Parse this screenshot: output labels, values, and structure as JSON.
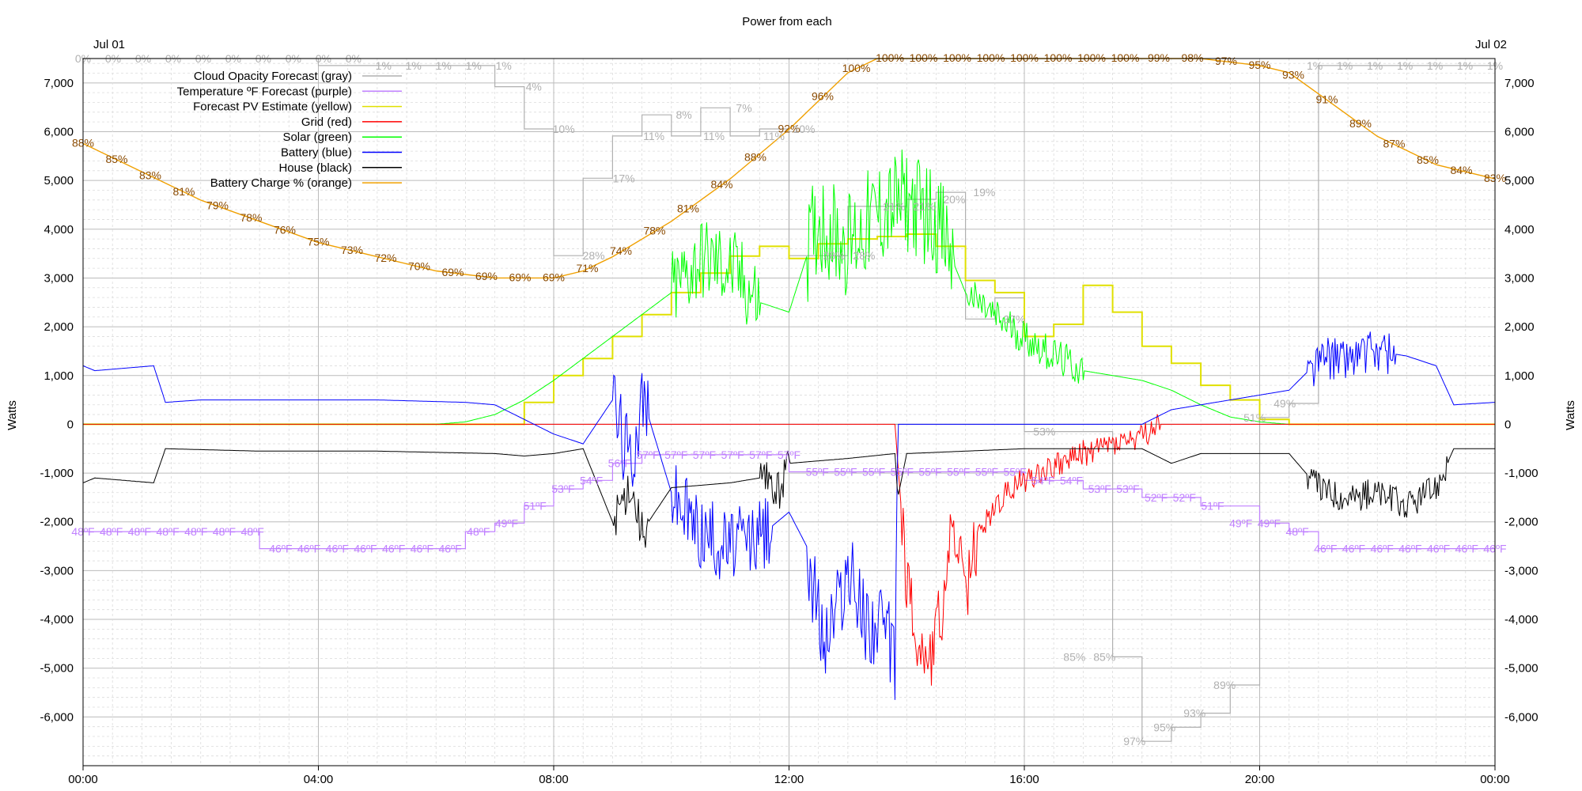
{
  "chart_data": {
    "type": "line",
    "title": "Power from each",
    "ylabel_left": "Watts",
    "ylabel_right": "Watts",
    "date_start_label": "Jul 01",
    "date_end_label": "Jul 02",
    "x_unit": "hour of day",
    "xlim": [
      0,
      24
    ],
    "ylim": [
      -7000,
      7500
    ],
    "x_tick_labels": [
      "00:00",
      "04:00",
      "08:00",
      "12:00",
      "16:00",
      "20:00",
      "00:00"
    ],
    "y_tick_labels": [
      "7,000",
      "6,000",
      "5,000",
      "4,000",
      "3,000",
      "2,000",
      "1,000",
      "0",
      "-1,000",
      "-2,000",
      "-3,000",
      "-4,000",
      "-5,000",
      "-6,000"
    ],
    "y_tick_values": [
      7000,
      6000,
      5000,
      4000,
      3000,
      2000,
      1000,
      0,
      -1000,
      -2000,
      -3000,
      -4000,
      -5000,
      -6000
    ],
    "grid": true,
    "legend_position": "top-left",
    "legend": [
      {
        "label": "Cloud Opacity Forecast (gray)",
        "color": "#b0b0b0"
      },
      {
        "label": "Temperature ºF Forecast (purple)",
        "color": "#c080ff"
      },
      {
        "label": "Forecast PV Estimate (yellow)",
        "color": "#e0e000"
      },
      {
        "label": "Grid (red)",
        "color": "#ff0000"
      },
      {
        "label": "Solar (green)",
        "color": "#00ff00"
      },
      {
        "label": "Battery (blue)",
        "color": "#0000ff"
      },
      {
        "label": "House (black)",
        "color": "#000000"
      },
      {
        "label": "Battery Charge % (orange)",
        "color": "#f0a000"
      }
    ],
    "series": [
      {
        "name": "Solar (green)",
        "color": "#00ff00",
        "x": [
          0,
          6,
          6.5,
          7,
          7.5,
          8,
          8.5,
          9,
          9.5,
          10,
          10.5,
          11,
          11.5,
          12,
          12.5,
          13,
          13.5,
          14,
          14.5,
          15,
          15.5,
          16,
          16.5,
          17,
          17.5,
          18,
          18.5,
          19,
          19.5,
          20,
          20.5
        ],
        "y": [
          0,
          0,
          50,
          200,
          500,
          900,
          1350,
          1800,
          2250,
          2700,
          3400,
          3200,
          2500,
          2300,
          4200,
          3700,
          4300,
          4600,
          4200,
          2700,
          2200,
          1800,
          1400,
          1100,
          1000,
          900,
          700,
          400,
          150,
          50,
          0
        ]
      },
      {
        "name": "Forecast PV Estimate (yellow)",
        "color": "#e0e000",
        "x": [
          0,
          7,
          7.5,
          8,
          8.5,
          9,
          9.5,
          10,
          10.5,
          11,
          11.5,
          12,
          12.5,
          13,
          13.5,
          14,
          14.5,
          15,
          15.5,
          16,
          16.5,
          17,
          17.5,
          18,
          18.5,
          19,
          19.5,
          20,
          20.5,
          21,
          24
        ],
        "y": [
          0,
          0,
          450,
          1000,
          1350,
          1800,
          2250,
          2700,
          3100,
          3450,
          3650,
          3400,
          3700,
          3800,
          3850,
          3900,
          3650,
          2950,
          2700,
          1800,
          2050,
          2850,
          2300,
          1600,
          1250,
          800,
          500,
          100,
          0,
          0,
          0
        ]
      },
      {
        "name": "Grid (red)",
        "color": "#ff0000",
        "x": [
          0,
          13.8,
          14,
          14.2,
          14.4,
          14.6,
          14.8,
          15,
          15.2,
          15.5,
          15.8,
          16.2,
          16.6,
          17,
          17.5,
          18,
          18.3,
          18.6,
          24
        ],
        "y": [
          0,
          0,
          -3200,
          -4500,
          -4800,
          -3800,
          -2000,
          -3600,
          -2300,
          -1700,
          -1300,
          -1000,
          -800,
          -600,
          -400,
          -300,
          0,
          0,
          0
        ]
      },
      {
        "name": "Battery (blue)",
        "color": "#0000ff",
        "x": [
          0,
          0.2,
          1.2,
          1.4,
          2,
          3,
          5,
          6.5,
          7,
          7.5,
          8,
          8.5,
          9,
          9.3,
          9.5,
          10,
          10.5,
          11,
          11.5,
          12,
          12.3,
          12.6,
          13,
          13.3,
          13.6,
          13.8,
          13.85,
          15,
          16,
          17,
          18,
          18.5,
          19,
          19.5,
          20,
          20.5,
          21,
          21.5,
          22,
          22.5,
          23,
          23.3,
          24
        ],
        "y": [
          1200,
          1100,
          1200,
          450,
          500,
          500,
          500,
          450,
          400,
          100,
          -200,
          -400,
          500,
          -800,
          600,
          -1400,
          -2200,
          -2500,
          -2300,
          -1800,
          -2500,
          -4500,
          -3000,
          -4000,
          -4200,
          -4800,
          0,
          0,
          0,
          0,
          0,
          300,
          400,
          500,
          600,
          700,
          1300,
          1400,
          1500,
          1400,
          1200,
          400,
          450
        ]
      },
      {
        "name": "House (black)",
        "color": "#000000",
        "x": [
          0,
          0.2,
          1.2,
          1.4,
          3,
          5,
          7,
          7.5,
          8,
          8.5,
          9,
          9.3,
          9.5,
          10,
          11,
          11.5,
          11.8,
          12,
          13,
          13.8,
          13.85,
          14,
          16,
          17,
          18,
          18.5,
          19,
          20,
          20.5,
          21,
          21.5,
          22,
          22.5,
          23,
          23.3,
          24
        ],
        "y": [
          -1200,
          -1100,
          -1200,
          -500,
          -550,
          -550,
          -600,
          -650,
          -600,
          -500,
          -2000,
          -1200,
          -2200,
          -1300,
          -1200,
          -1100,
          -1400,
          -800,
          -700,
          -600,
          -1500,
          -600,
          -500,
          -500,
          -500,
          -800,
          -600,
          -600,
          -600,
          -1300,
          -1500,
          -1400,
          -1700,
          -1300,
          -500,
          -500
        ]
      },
      {
        "name": "Battery Charge % (orange)",
        "color": "#f0a000",
        "x": [
          0,
          1,
          2,
          3,
          4,
          5,
          6,
          7,
          8,
          8.5,
          9,
          10,
          11,
          12,
          13,
          13.5,
          14,
          15,
          16,
          17,
          18,
          19,
          20,
          20.5,
          21,
          21.5,
          22,
          22.5,
          23,
          23.5,
          24
        ],
        "y_percent": [
          88,
          84,
          80,
          77,
          74,
          72,
          70,
          69,
          69,
          70,
          72,
          77,
          83,
          90,
          98,
          100,
          100,
          100,
          100,
          100,
          100,
          100,
          99,
          98,
          95,
          92,
          89,
          87,
          85,
          84,
          83
        ]
      },
      {
        "name": "Cloud Opacity Forecast (gray)",
        "color": "#b0b0b0",
        "x": [
          0,
          4,
          6.5,
          7,
          7.5,
          8,
          8.5,
          9,
          9.5,
          10,
          10.5,
          11,
          11.5,
          12,
          12.5,
          13,
          13.5,
          14,
          14.5,
          15,
          15.5,
          16,
          16.5,
          17,
          17.5,
          18,
          18.5,
          19,
          19.5,
          20,
          20.5,
          21,
          24
        ],
        "y_percent": [
          0,
          1,
          1,
          4,
          10,
          28,
          17,
          11,
          8,
          11,
          7,
          11,
          10,
          28,
          28,
          21,
          21,
          20,
          19,
          37,
          34,
          53,
          53,
          53,
          85,
          97,
          95,
          93,
          89,
          51,
          49,
          1,
          1
        ]
      },
      {
        "name": "Temperature ºF Forecast (purple)",
        "color": "#c080ff",
        "x": [
          0,
          1,
          2,
          3,
          4,
          5,
          6,
          6.5,
          7,
          7.5,
          8,
          8.5,
          9,
          9.5,
          10,
          11,
          12,
          13,
          14,
          15,
          16,
          17,
          18,
          19,
          20,
          20.5,
          21,
          22,
          23,
          24
        ],
        "y_temp": [
          48,
          48,
          48,
          46,
          46,
          46,
          46,
          48,
          49,
          51,
          53,
          54,
          56,
          57,
          57,
          57,
          55,
          55,
          55,
          55,
          54,
          53,
          52,
          51,
          49,
          48,
          46,
          46,
          46,
          46
        ]
      }
    ],
    "orange_point_labels": [
      "88%",
      "85%",
      "83%",
      "81%",
      "79%",
      "78%",
      "76%",
      "75%",
      "73%",
      "72%",
      "70%",
      "69%",
      "69%",
      "69%",
      "69%",
      "71%",
      "74%",
      "78%",
      "81%",
      "84%",
      "88%",
      "92%",
      "96%",
      "100%",
      "100%",
      "100%",
      "100%",
      "100%",
      "100%",
      "100%",
      "100%",
      "100%",
      "99%",
      "98%",
      "97%",
      "95%",
      "93%",
      "91%",
      "89%",
      "87%",
      "85%",
      "84%",
      "83%"
    ],
    "gray_point_labels": [
      "0%",
      "0%",
      "0%",
      "0%",
      "0%",
      "0%",
      "0%",
      "0%",
      "0%",
      "0%",
      "1%",
      "1%",
      "1%",
      "1%",
      "1%",
      "4%",
      "10%",
      "28%",
      "17%",
      "11%",
      "8%",
      "11%",
      "7%",
      "11%",
      "10%",
      "28%",
      "28%",
      "21%",
      "21%",
      "20%",
      "19%",
      "37%",
      "53%",
      "85%",
      "85%",
      "97%",
      "95%",
      "93%",
      "89%",
      "51%",
      "49%",
      "1%",
      "1%",
      "1%",
      "1%",
      "1%",
      "1%",
      "1%"
    ],
    "purple_point_labels": [
      "48ºF",
      "48ºF",
      "48ºF",
      "48ºF",
      "48ºF",
      "48ºF",
      "48ºF",
      "46ºF",
      "46ºF",
      "46ºF",
      "46ºF",
      "46ºF",
      "46ºF",
      "46ºF",
      "48ºF",
      "49ºF",
      "51ºF",
      "53ºF",
      "54ºF",
      "56ºF",
      "57ºF",
      "57ºF",
      "57ºF",
      "57ºF",
      "57ºF",
      "57ºF",
      "55ºF",
      "55ºF",
      "55ºF",
      "55ºF",
      "55ºF",
      "55ºF",
      "55ºF",
      "55ºF",
      "54ºF",
      "54ºF",
      "53ºF",
      "53ºF",
      "52ºF",
      "52ºF",
      "51ºF",
      "49ºF",
      "49ºF",
      "48ºF",
      "46ºF",
      "46ºF",
      "46ºF",
      "46ºF",
      "46ºF",
      "46ºF",
      "46ºF"
    ]
  }
}
